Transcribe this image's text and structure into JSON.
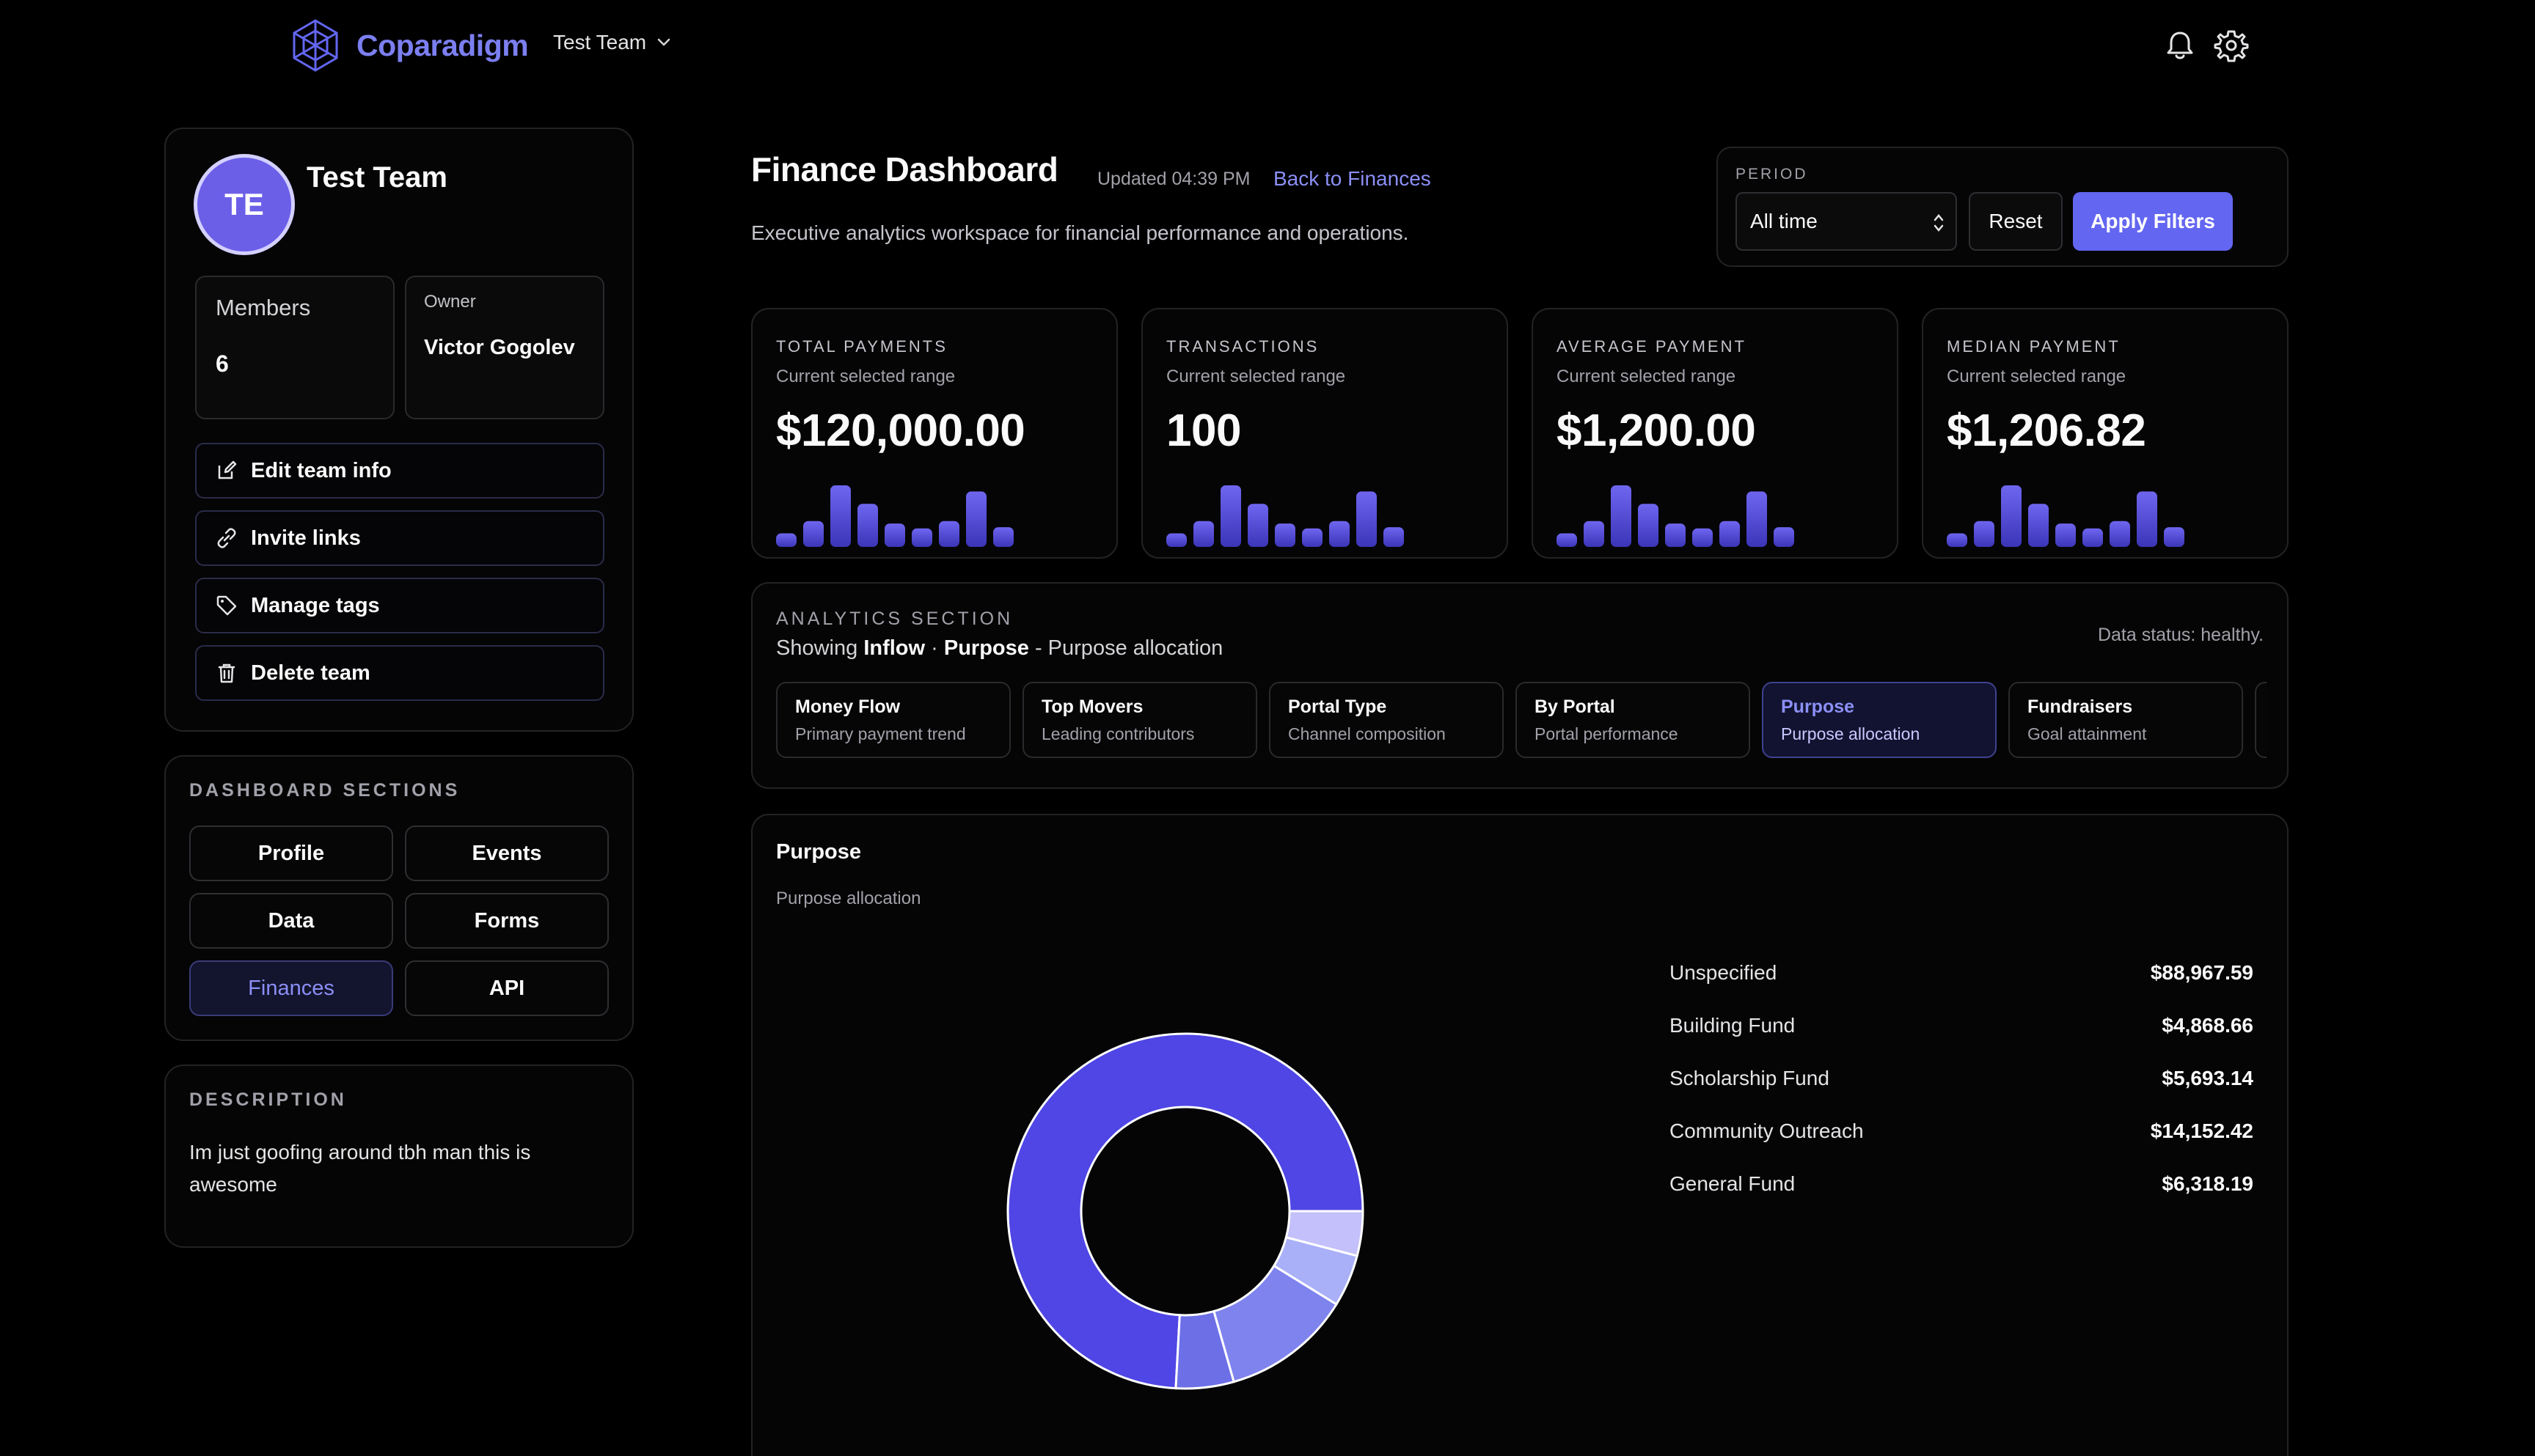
{
  "header": {
    "brand": "Coparadigm",
    "team_switch": "Test Team",
    "icons": [
      "bell-icon",
      "gear-icon"
    ]
  },
  "team": {
    "avatar_initials": "TE",
    "name": "Test Team",
    "members_label": "Members",
    "members_value": "6",
    "owner_label": "Owner",
    "owner_value": "Victor Gogolev",
    "actions": [
      {
        "label": "Edit team info",
        "icon": "edit-icon"
      },
      {
        "label": "Invite links",
        "icon": "link-icon"
      },
      {
        "label": "Manage tags",
        "icon": "tag-icon"
      },
      {
        "label": "Delete team",
        "icon": "trash-icon"
      }
    ]
  },
  "sections": {
    "heading": "DASHBOARD SECTIONS",
    "items": [
      "Profile",
      "Events",
      "Data",
      "Forms",
      "Finances",
      "API"
    ],
    "active": "Finances"
  },
  "description": {
    "heading": "DESCRIPTION",
    "text": "Im just goofing around tbh man this is awesome"
  },
  "page": {
    "title": "Finance Dashboard",
    "updated": "Updated 04:39 PM",
    "back_link": "Back to Finances",
    "subtitle": "Executive analytics workspace for financial performance and operations."
  },
  "period": {
    "label": "PERIOD",
    "selected": "All time",
    "reset": "Reset",
    "apply": "Apply Filters"
  },
  "kpis": [
    {
      "label": "TOTAL PAYMENTS",
      "sub": "Current selected range",
      "value": "$120,000.00"
    },
    {
      "label": "TRANSACTIONS",
      "sub": "Current selected range",
      "value": "100"
    },
    {
      "label": "AVERAGE PAYMENT",
      "sub": "Current selected range",
      "value": "$1,200.00"
    },
    {
      "label": "MEDIAN PAYMENT",
      "sub": "Current selected range",
      "value": "$1,206.82"
    }
  ],
  "sparkline_levels": [
    0.22,
    0.42,
    1.0,
    0.7,
    0.38,
    0.3,
    0.42,
    0.9,
    0.32
  ],
  "colors": {
    "accent": "#6366f1",
    "spark_bar_top": "#6f66f0",
    "spark_bar_bottom": "#3b35b8"
  },
  "analytics": {
    "label": "ANALYTICS SECTION",
    "showing_prefix": "Showing",
    "showing_flow": "Inflow",
    "showing_sep": "·",
    "showing_view": "Purpose",
    "showing_suffix": "- Purpose allocation",
    "status": "Data status: healthy.",
    "tabs": [
      {
        "title": "Money Flow",
        "sub": "Primary payment trend"
      },
      {
        "title": "Top Movers",
        "sub": "Leading contributors"
      },
      {
        "title": "Portal Type",
        "sub": "Channel composition"
      },
      {
        "title": "By Portal",
        "sub": "Portal performance"
      },
      {
        "title": "Purpose",
        "sub": "Purpose allocation"
      },
      {
        "title": "Fundraisers",
        "sub": "Goal attainment"
      }
    ],
    "active_tab": "Purpose"
  },
  "purpose": {
    "title": "Purpose",
    "subtitle": "Purpose allocation"
  },
  "chart_data": {
    "type": "pie",
    "title": "Purpose",
    "categories": [
      "Unspecified",
      "Building Fund",
      "Scholarship Fund",
      "Community Outreach",
      "General Fund"
    ],
    "values": [
      88967.59,
      4868.66,
      5693.14,
      14152.42,
      6318.19
    ],
    "display_values": [
      "$88,967.59",
      "$4,868.66",
      "$5,693.14",
      "$14,152.42",
      "$6,318.19"
    ],
    "colors": [
      "#4f46e5",
      "#c4c0fb",
      "#a9b0f8",
      "#7f83ee",
      "#6d6fe6"
    ],
    "legend_position": "right"
  }
}
